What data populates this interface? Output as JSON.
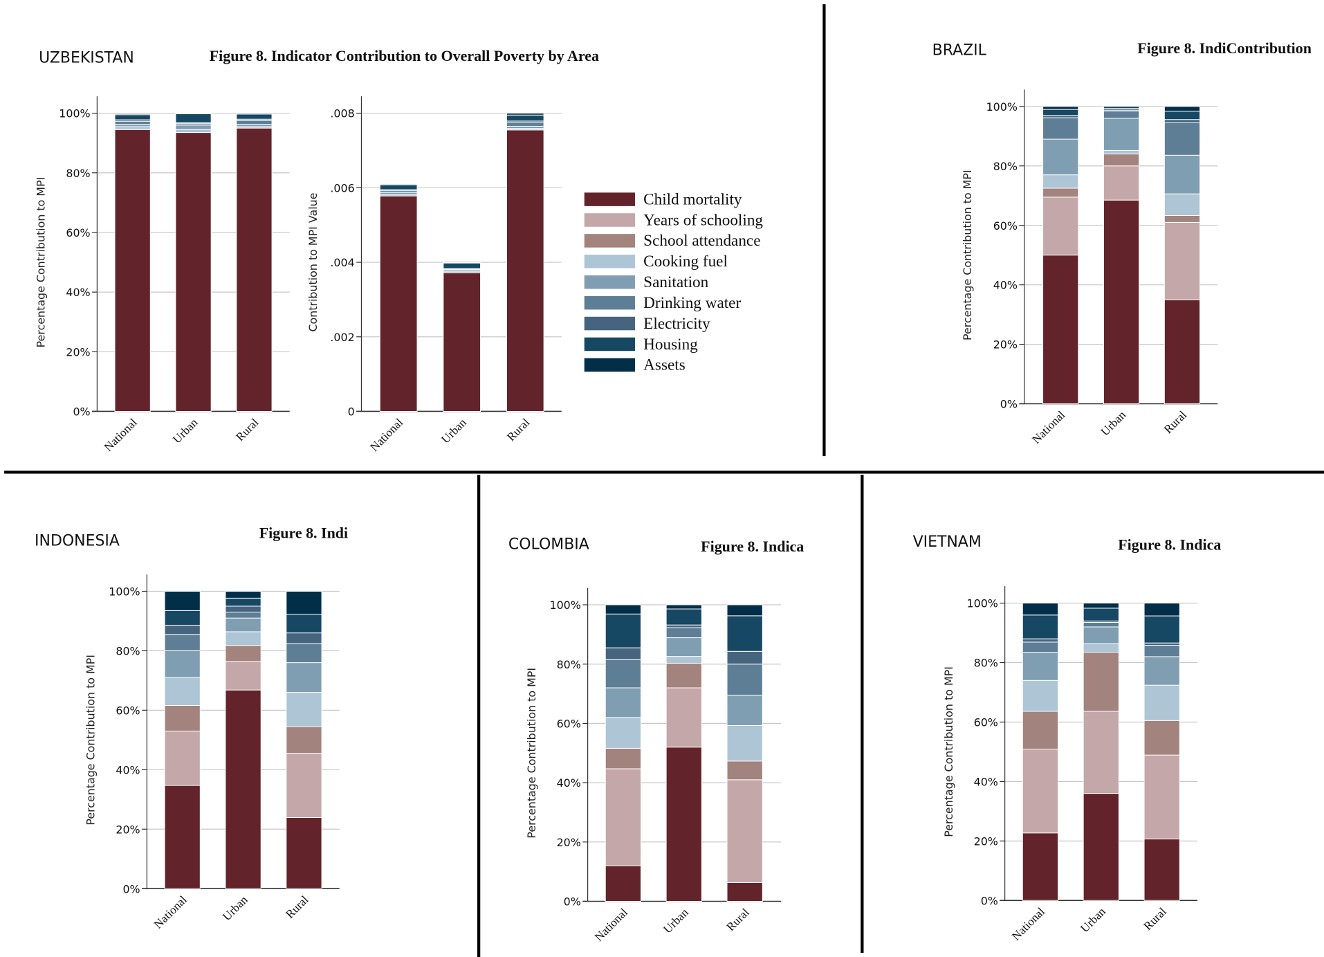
{
  "legend": [
    "Child mortality",
    "Years of schooling",
    "School attendance",
    "Cooking fuel",
    "Sanitation",
    "Drinking water",
    "Electricity",
    "Housing",
    "Assets"
  ],
  "colors": [
    "#62232a",
    "#c4a7a8",
    "#a3837d",
    "#adc5d5",
    "#7f9eb2",
    "#5e7e96",
    "#46647e",
    "#174863",
    "#032e48"
  ],
  "chart_data": [
    {
      "id": "uzbekistan-pct",
      "type": "bar",
      "stacked": true,
      "country": "UZBEKISTAN",
      "title": "Figure 8. Indicator Contribution to Overall Poverty by Area",
      "ylabel": "Percentage Contribution to MPI",
      "ylim": [
        0,
        100
      ],
      "yticks": [
        "0%",
        "20%",
        "40%",
        "60%",
        "80%",
        "100%"
      ],
      "categories": [
        "National",
        "Urban",
        "Rural"
      ],
      "stack_tops": [
        [
          94.5,
          94.5,
          94.5,
          95.5,
          96.3,
          97.3,
          97.8,
          99.5,
          99.8
        ],
        [
          93.5,
          93.5,
          93.5,
          94.5,
          96,
          96.5,
          96.8,
          99.8,
          100
        ],
        [
          95,
          95,
          95,
          95.5,
          96.3,
          97.5,
          98,
          99.7,
          100
        ]
      ]
    },
    {
      "id": "uzbekistan-value",
      "type": "bar",
      "stacked": true,
      "ylabel": "Contribution to MPI Value",
      "ylim": [
        0,
        0.008
      ],
      "yticks": [
        "0",
        ".002",
        ".004",
        ".006",
        ".008"
      ],
      "categories": [
        "National",
        "Urban",
        "Rural"
      ],
      "stack_tops": [
        [
          0.00578,
          0.00578,
          0.00578,
          0.00582,
          0.00587,
          0.00592,
          0.00595,
          0.00608,
          0.0061
        ],
        [
          0.00372,
          0.00372,
          0.00372,
          0.00376,
          0.0038,
          0.00382,
          0.00383,
          0.00398,
          0.00399
        ],
        [
          0.00755,
          0.00755,
          0.00755,
          0.00759,
          0.00765,
          0.00775,
          0.00779,
          0.00795,
          0.008
        ]
      ]
    },
    {
      "id": "brazil",
      "type": "bar",
      "stacked": true,
      "country": "BRAZIL",
      "title": "Figure 8. IndiContribution",
      "ylabel": "Percentage Contribution to MPI",
      "ylim": [
        0,
        100
      ],
      "yticks": [
        "0%",
        "20%",
        "40%",
        "60%",
        "80%",
        "100%"
      ],
      "categories": [
        "National",
        "Urban",
        "Rural"
      ],
      "stack_tops": [
        [
          50,
          69.5,
          72.5,
          77,
          89,
          96.2,
          97,
          99,
          100
        ],
        [
          68.5,
          80,
          84,
          85.2,
          96,
          98.5,
          98.8,
          99.4,
          100
        ],
        [
          35,
          61,
          63.3,
          70.6,
          83.6,
          94.6,
          95.6,
          98.4,
          100
        ]
      ]
    },
    {
      "id": "indonesia",
      "type": "bar",
      "stacked": true,
      "country": "INDONESIA",
      "title": "Figure 8. Indi",
      "ylabel": "Percentage Contribution to MPI",
      "ylim": [
        0,
        100
      ],
      "yticks": [
        "0%",
        "20%",
        "40%",
        "60%",
        "80%",
        "100%"
      ],
      "categories": [
        "National",
        "Urban",
        "Rural"
      ],
      "stack_tops": [
        [
          34.7,
          53,
          61.6,
          71,
          80,
          85.5,
          88.6,
          93.5,
          100
        ],
        [
          66.8,
          76.4,
          81.8,
          86.4,
          91,
          93,
          95,
          97.7,
          100
        ],
        [
          23.9,
          45.5,
          54.5,
          66,
          76,
          82.4,
          86,
          92.3,
          100
        ]
      ]
    },
    {
      "id": "colombia",
      "type": "bar",
      "stacked": true,
      "country": "COLOMBIA",
      "title": "Figure 8. Indica",
      "ylabel": "Percentage Contribution to MPI",
      "ylim": [
        0,
        100
      ],
      "yticks": [
        "0%",
        "20%",
        "40%",
        "60%",
        "80%",
        "100%"
      ],
      "categories": [
        "National",
        "Urban",
        "Rural"
      ],
      "stack_tops": [
        [
          12,
          44.7,
          51.6,
          62,
          72,
          81.5,
          85.5,
          96.9,
          100
        ],
        [
          52,
          72,
          80.3,
          82.6,
          88.9,
          92.3,
          93.2,
          98.6,
          100
        ],
        [
          6.3,
          41,
          47.3,
          59.3,
          69.5,
          80,
          84.3,
          96.3,
          100
        ]
      ]
    },
    {
      "id": "vietnam",
      "type": "bar",
      "stacked": true,
      "country": "VIETNAM",
      "title": "Figure 8. Indica",
      "ylabel": "Percentage Contribution to MPI",
      "ylim": [
        0,
        100
      ],
      "yticks": [
        "0%",
        "20%",
        "40%",
        "60%",
        "80%",
        "100%"
      ],
      "categories": [
        "National",
        "Urban",
        "Rural"
      ],
      "stack_tops": [
        [
          22.7,
          50.9,
          63.6,
          74,
          83.5,
          86.9,
          88,
          96,
          100
        ],
        [
          36,
          63.6,
          83.5,
          86.4,
          92,
          93.5,
          94,
          98.3,
          100
        ],
        [
          20.7,
          48.9,
          60.5,
          72.4,
          82,
          85.8,
          86.6,
          95.7,
          100
        ]
      ]
    }
  ]
}
